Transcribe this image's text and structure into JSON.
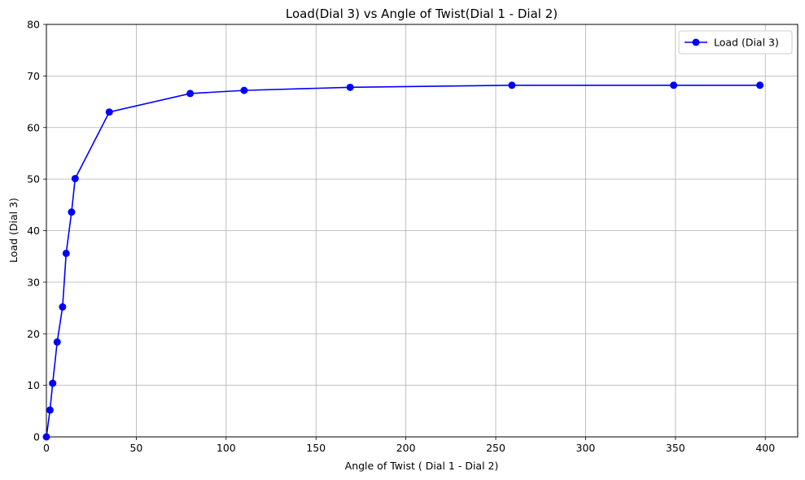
{
  "chart_data": {
    "type": "line",
    "title": "Load(Dial 3) vs Angle of Twist(Dial 1 - Dial 2)",
    "xlabel": "Angle of Twist ( Dial 1 - Dial 2)",
    "ylabel": "Load (Dial 3)",
    "xlim": [
      0,
      418
    ],
    "ylim": [
      0,
      80
    ],
    "xticks": [
      0,
      50,
      100,
      150,
      200,
      250,
      300,
      350,
      400
    ],
    "yticks": [
      0,
      10,
      20,
      30,
      40,
      50,
      60,
      70,
      80
    ],
    "grid": true,
    "legend_position": "top-right",
    "series": [
      {
        "name": "Load (Dial 3)",
        "color": "#0000ff",
        "marker": "circle",
        "x": [
          0,
          2,
          3.5,
          6,
          9,
          11,
          14,
          16,
          35,
          80,
          110,
          169,
          259,
          349,
          397
        ],
        "y": [
          0,
          5.2,
          10.4,
          18.4,
          25.2,
          35.6,
          43.6,
          50.1,
          63.0,
          66.6,
          67.2,
          67.8,
          68.2,
          68.2,
          68.2
        ]
      }
    ]
  }
}
